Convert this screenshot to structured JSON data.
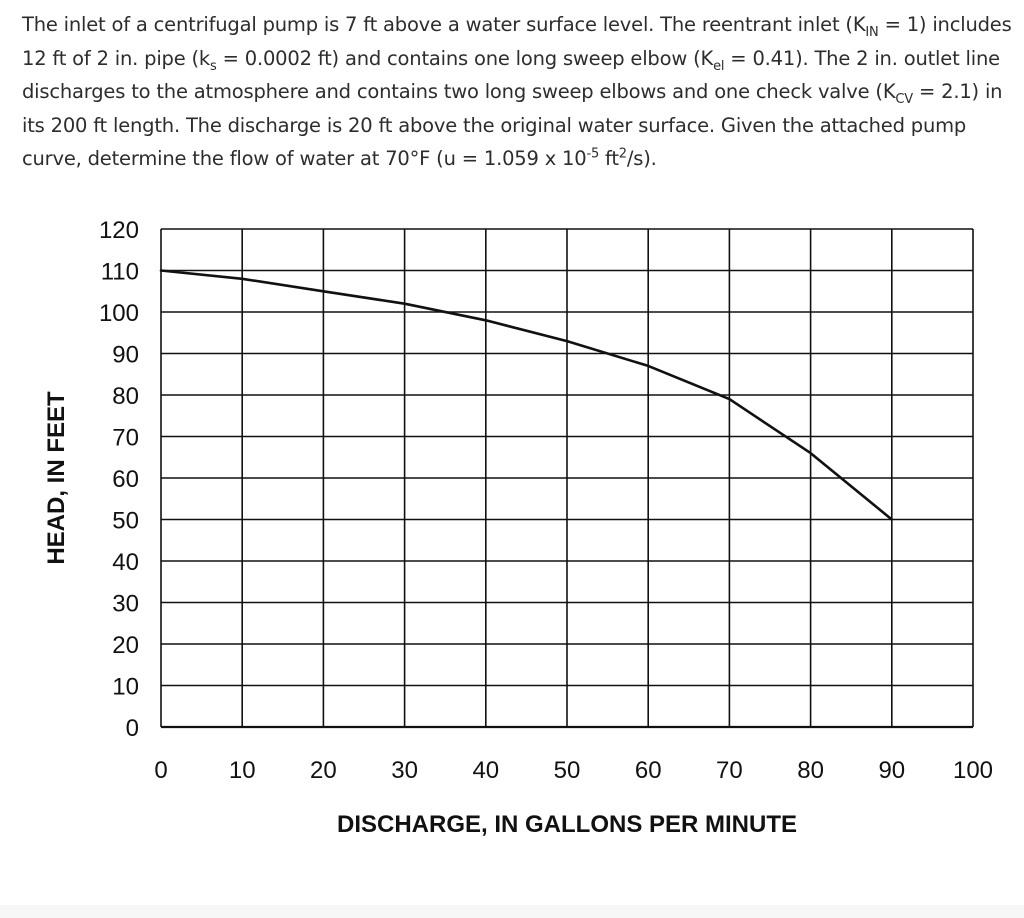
{
  "problem": {
    "p1": "The inlet of a centrifugal pump is 7 ft above a water surface level. The reentrant inlet (K",
    "s_in": "IN",
    "p2": " = 1) includes 12 ft of 2 in. pipe (k",
    "s_s": "s",
    "p3": " = 0.0002 ft) and contains one long sweep elbow (K",
    "s_el": "el",
    "p4": " = 0.41). The 2 in. outlet line discharges to the atmosphere and contains two long sweep elbows and one check valve (K",
    "s_cv": "CV",
    "p5": " = 2.1) in its 200 ft length. The discharge is 20 ft above the original water surface. Given the attached pump curve, determine the flow of water at 70°F (u = 1.059 x 10",
    "sup_exp": "-5",
    "p6": " ft",
    "sup_sq": "2",
    "p7": "/s)."
  },
  "chart_data": {
    "type": "line",
    "xlabel": "DISCHARGE, IN GALLONS PER MINUTE",
    "ylabel": "HEAD, IN FEET",
    "xlim": [
      0,
      100
    ],
    "ylim": [
      0,
      120
    ],
    "x_ticks": [
      "0",
      "10",
      "20",
      "30",
      "40",
      "50",
      "60",
      "70",
      "80",
      "90",
      "100"
    ],
    "y_ticks": [
      "120",
      "110",
      "100",
      "90",
      "80",
      "70",
      "60",
      "50",
      "40",
      "30",
      "20",
      "10",
      "0"
    ],
    "grid": true,
    "series": [
      {
        "x": [
          0,
          10,
          20,
          30,
          40,
          50,
          60,
          70,
          80,
          90
        ],
        "y": [
          110,
          108,
          105,
          102,
          98,
          93,
          87,
          79,
          66,
          50
        ]
      }
    ],
    "colors": {
      "line": "#111111",
      "grid": "#111111"
    }
  }
}
